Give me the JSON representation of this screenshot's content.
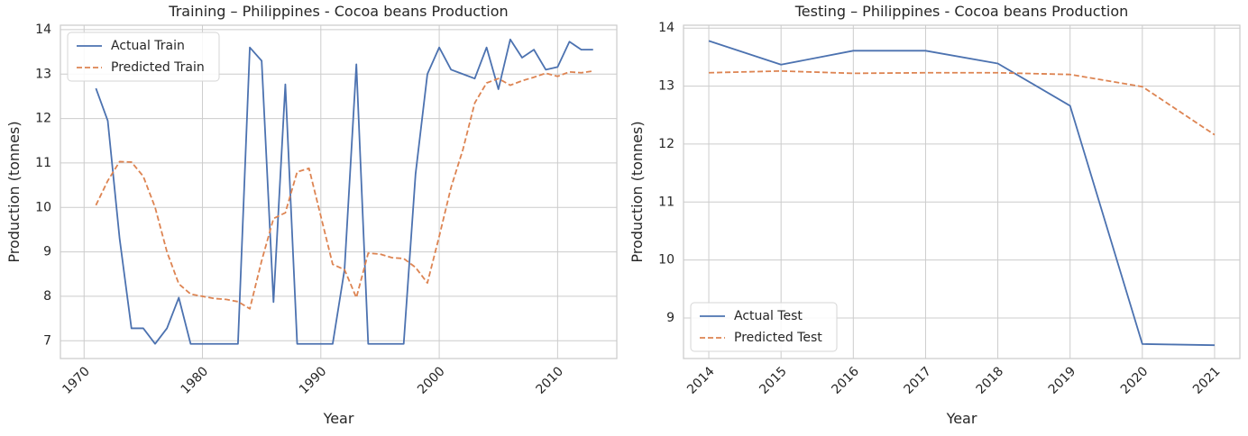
{
  "chart_data": [
    {
      "type": "line",
      "title": "Training – Philippines - Cocoa beans Production",
      "xlabel": "Year",
      "ylabel": "Production (tonnes)",
      "xlim": [
        1968,
        2015
      ],
      "ylim": [
        6.6,
        14.1
      ],
      "xticks": [
        1970,
        1980,
        1990,
        2000,
        2010
      ],
      "yticks": [
        7,
        8,
        9,
        10,
        11,
        12,
        13,
        14
      ],
      "x_tick_rotation": 45,
      "grid": true,
      "legend_position": "upper-left",
      "x": [
        1971,
        1972,
        1973,
        1974,
        1975,
        1976,
        1977,
        1978,
        1979,
        1980,
        1981,
        1982,
        1983,
        1984,
        1985,
        1986,
        1987,
        1988,
        1989,
        1990,
        1991,
        1992,
        1993,
        1994,
        1995,
        1996,
        1997,
        1998,
        1999,
        2000,
        2001,
        2002,
        2003,
        2004,
        2005,
        2006,
        2007,
        2008,
        2009,
        2010,
        2011,
        2012,
        2013
      ],
      "series": [
        {
          "name": "Actual Train",
          "style": "solid",
          "color": "#4c72b0",
          "values": [
            12.68,
            11.95,
            9.3,
            7.28,
            7.28,
            6.93,
            7.28,
            7.97,
            6.93,
            6.93,
            6.93,
            6.93,
            6.93,
            13.6,
            13.3,
            7.87,
            12.77,
            6.93,
            6.93,
            6.93,
            6.93,
            8.6,
            13.22,
            6.93,
            6.93,
            6.93,
            6.93,
            10.75,
            13.0,
            13.6,
            13.1,
            13.0,
            12.9,
            13.6,
            12.66,
            13.78,
            13.37,
            13.55,
            13.1,
            13.16,
            13.73,
            13.55,
            13.55
          ]
        },
        {
          "name": "Predicted Train",
          "style": "dashed",
          "color": "#dd8452",
          "values": [
            10.05,
            10.6,
            11.03,
            11.02,
            10.7,
            10.0,
            9.0,
            8.28,
            8.05,
            8.0,
            7.95,
            7.93,
            7.88,
            7.72,
            8.8,
            9.75,
            9.88,
            10.8,
            10.88,
            9.8,
            8.72,
            8.6,
            7.97,
            8.97,
            8.95,
            8.87,
            8.85,
            8.65,
            8.3,
            9.35,
            10.45,
            11.3,
            12.35,
            12.8,
            12.9,
            12.75,
            12.85,
            12.93,
            13.02,
            12.95,
            13.05,
            13.03,
            13.07
          ]
        }
      ]
    },
    {
      "type": "line",
      "title": "Testing – Philippines - Cocoa beans Production",
      "xlabel": "Year",
      "ylabel": "Production (tonnes)",
      "xlim": [
        2013.65,
        2021.35
      ],
      "ylim": [
        8.3,
        14.05
      ],
      "xticks": [
        2014,
        2015,
        2016,
        2017,
        2018,
        2019,
        2020,
        2021
      ],
      "yticks": [
        9,
        10,
        11,
        12,
        13,
        14
      ],
      "x_tick_rotation": 45,
      "grid": true,
      "legend_position": "lower-left",
      "x": [
        2014,
        2015,
        2016,
        2017,
        2018,
        2019,
        2020,
        2021
      ],
      "series": [
        {
          "name": "Actual Test",
          "style": "solid",
          "color": "#4c72b0",
          "values": [
            13.78,
            13.37,
            13.61,
            13.61,
            13.39,
            12.66,
            8.55,
            8.53
          ]
        },
        {
          "name": "Predicted Test",
          "style": "dashed",
          "color": "#dd8452",
          "values": [
            13.23,
            13.26,
            13.22,
            13.23,
            13.23,
            13.2,
            12.99,
            12.16
          ]
        }
      ]
    }
  ]
}
